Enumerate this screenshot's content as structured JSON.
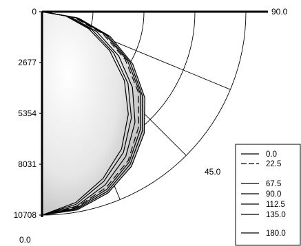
{
  "chart_data": {
    "type": "polar-candela",
    "radial_axis": {
      "ticks": [
        0,
        2677,
        5354,
        8031,
        10708
      ],
      "tick_labels": [
        "0",
        "2677",
        "5354",
        "8031",
        "10708"
      ],
      "max": 10708
    },
    "angle_labels": {
      "bottom": "0.0",
      "diagonal": "45.0",
      "horizontal": "90.0"
    },
    "legend": [
      {
        "name": "0.0",
        "style": "solid"
      },
      {
        "name": "22.5",
        "style": "long-dash"
      },
      {
        "name": "67.5",
        "style": "solid"
      },
      {
        "name": "90.0",
        "style": "solid"
      },
      {
        "name": "112.5",
        "style": "solid"
      },
      {
        "name": "135.0",
        "style": "solid"
      },
      {
        "name": "180.0",
        "style": "solid"
      }
    ],
    "series": [
      {
        "name": "0.0",
        "points": [
          [
            0,
            10708
          ],
          [
            10,
            10550
          ],
          [
            20,
            10060
          ],
          [
            30,
            9270
          ],
          [
            40,
            8200
          ],
          [
            50,
            6880
          ],
          [
            60,
            5350
          ],
          [
            70,
            3660
          ],
          [
            80,
            1860
          ],
          [
            90,
            0
          ]
        ]
      },
      {
        "name": "22.5",
        "points": [
          [
            0,
            10708
          ],
          [
            10,
            10450
          ],
          [
            20,
            9850
          ],
          [
            30,
            9050
          ],
          [
            40,
            7900
          ],
          [
            50,
            6600
          ],
          [
            60,
            5050
          ],
          [
            70,
            3400
          ],
          [
            80,
            1700
          ],
          [
            90,
            0
          ]
        ]
      },
      {
        "name": "67.5",
        "points": [
          [
            0,
            10708
          ],
          [
            10,
            10400
          ],
          [
            20,
            9700
          ],
          [
            30,
            8800
          ],
          [
            40,
            7600
          ],
          [
            50,
            6200
          ],
          [
            60,
            4650
          ],
          [
            70,
            3050
          ],
          [
            80,
            1500
          ],
          [
            90,
            0
          ]
        ]
      },
      {
        "name": "90.0",
        "points": [
          [
            0,
            10708
          ],
          [
            10,
            10300
          ],
          [
            20,
            9500
          ],
          [
            30,
            8550
          ],
          [
            40,
            7300
          ],
          [
            50,
            5900
          ],
          [
            60,
            4350
          ],
          [
            70,
            2800
          ],
          [
            80,
            1350
          ],
          [
            90,
            0
          ]
        ]
      },
      {
        "name": "112.5",
        "points": [
          [
            0,
            10708
          ],
          [
            10,
            10200
          ],
          [
            20,
            9350
          ],
          [
            30,
            8350
          ],
          [
            40,
            7050
          ],
          [
            50,
            5650
          ],
          [
            60,
            4100
          ],
          [
            70,
            2600
          ],
          [
            80,
            1250
          ],
          [
            90,
            0
          ]
        ]
      },
      {
        "name": "135.0",
        "points": [
          [
            0,
            10708
          ],
          [
            10,
            10600
          ],
          [
            20,
            10150
          ],
          [
            30,
            9400
          ],
          [
            40,
            8350
          ],
          [
            50,
            7050
          ],
          [
            60,
            5500
          ],
          [
            70,
            3800
          ],
          [
            80,
            1950
          ],
          [
            90,
            0
          ]
        ]
      },
      {
        "name": "180.0",
        "points": [
          [
            0,
            10708
          ],
          [
            10,
            10500
          ],
          [
            20,
            9950
          ],
          [
            30,
            9150
          ],
          [
            40,
            8050
          ],
          [
            50,
            6750
          ],
          [
            60,
            5200
          ],
          [
            70,
            3550
          ],
          [
            80,
            1800
          ],
          [
            90,
            0
          ]
        ]
      }
    ]
  }
}
